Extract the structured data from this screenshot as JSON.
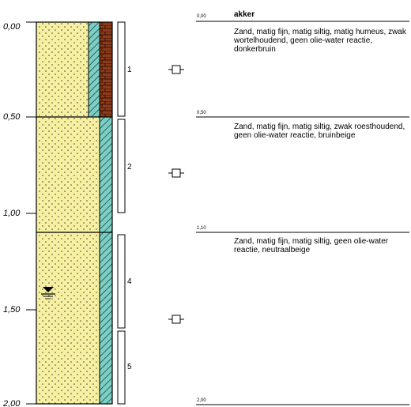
{
  "depth_axis": {
    "ticks": [
      "0,00",
      "0,50",
      "1,00",
      "1,50",
      "2,00"
    ]
  },
  "soil_column": {
    "top_depth": 0.0,
    "bottom_depth": 2.0,
    "layers": [
      {
        "top": 0.0,
        "bottom": 0.5,
        "fill": "#f6f0a0",
        "has_humus": true
      },
      {
        "top": 0.5,
        "bottom": 1.1,
        "fill": "#f6f0a0",
        "has_humus": false
      },
      {
        "top": 1.1,
        "bottom": 2.0,
        "fill": "#f6f0a0",
        "has_humus": false
      }
    ],
    "casing_color": "#7ccfc4",
    "humus_color": "#8b3a1a",
    "water_level_depth": 1.38
  },
  "samples": [
    {
      "number": "1",
      "top": 0.0,
      "bottom": 0.5
    },
    {
      "number": "2",
      "top": 0.5,
      "bottom": 1.0
    },
    {
      "number": "4",
      "top": 1.1,
      "bottom": 1.6
    },
    {
      "number": "5",
      "top": 1.65,
      "bottom": 2.0
    }
  ],
  "markers": [
    0.25,
    0.8,
    1.58
  ],
  "descriptions": {
    "header_label": "akker",
    "boundaries": [
      "0,00",
      "0,50",
      "1,10",
      "2,00"
    ],
    "layers": [
      "Zand, matig fijn, matig siltig, matig humeus, zwak wortelhoudend, geen olie-water reactie, donkerbruin",
      "Zand, matig fijn, matig siltig, zwak roesthoudend, geen olie-water reactie,  bruinbeige",
      "Zand, matig fijn, matig siltig, geen olie-water reactie, neutraalbeige"
    ]
  }
}
